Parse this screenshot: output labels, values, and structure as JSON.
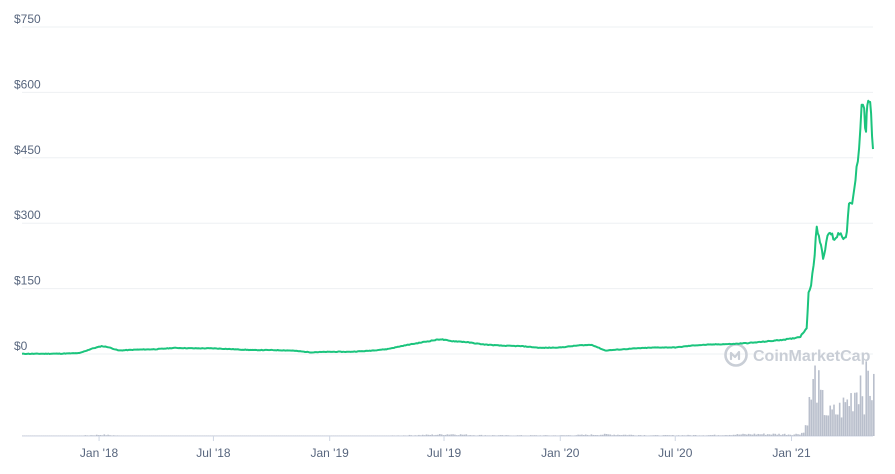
{
  "watermark": {
    "text": "CoinMarketCap"
  },
  "colors": {
    "line": "#1bc47d",
    "grid": "#eef0f3",
    "volume": "#b9bfcc",
    "axis_text": "#58667e",
    "watermark": "#c9ced6"
  },
  "chart_data": {
    "type": "line",
    "title": "",
    "xlabel": "",
    "ylabel": "",
    "ylim": [
      0,
      750
    ],
    "y_ticks": [
      "$750",
      "$600",
      "$450",
      "$300",
      "$150",
      "$0"
    ],
    "y_tick_values": [
      750,
      600,
      450,
      300,
      150,
      0
    ],
    "x_ticks": [
      "Jan '18",
      "Jul '18",
      "Jan '19",
      "Jul '19",
      "Jan '20",
      "Jul '20",
      "Jan '21"
    ],
    "x_tick_dates": [
      "2018-01-01",
      "2018-07-01",
      "2019-01-01",
      "2019-07-01",
      "2020-01-01",
      "2020-07-01",
      "2021-01-01"
    ],
    "xlim": [
      "2017-09-01",
      "2021-05-10"
    ],
    "grid": true,
    "legend": "none",
    "series": [
      {
        "values": [
          [
            "2017-09-01",
            0.5
          ],
          [
            "2017-10-01",
            0.5
          ],
          [
            "2017-11-01",
            0.8
          ],
          [
            "2017-12-01",
            2
          ],
          [
            "2017-12-20",
            12
          ],
          [
            "2018-01-05",
            18
          ],
          [
            "2018-01-15",
            16
          ],
          [
            "2018-02-01",
            8
          ],
          [
            "2018-02-15",
            9
          ],
          [
            "2018-03-01",
            10
          ],
          [
            "2018-04-01",
            11
          ],
          [
            "2018-05-01",
            14
          ],
          [
            "2018-06-01",
            13
          ],
          [
            "2018-07-01",
            13
          ],
          [
            "2018-08-01",
            11
          ],
          [
            "2018-09-01",
            9
          ],
          [
            "2018-10-01",
            9
          ],
          [
            "2018-11-01",
            8
          ],
          [
            "2018-12-01",
            4
          ],
          [
            "2019-01-01",
            5
          ],
          [
            "2019-02-01",
            5
          ],
          [
            "2019-03-01",
            7
          ],
          [
            "2019-04-01",
            11
          ],
          [
            "2019-05-01",
            20
          ],
          [
            "2019-06-01",
            28
          ],
          [
            "2019-06-25",
            34
          ],
          [
            "2019-07-10",
            30
          ],
          [
            "2019-08-01",
            28
          ],
          [
            "2019-09-01",
            22
          ],
          [
            "2019-10-01",
            19
          ],
          [
            "2019-11-01",
            18
          ],
          [
            "2019-12-01",
            14
          ],
          [
            "2020-01-01",
            15
          ],
          [
            "2020-02-01",
            20
          ],
          [
            "2020-02-20",
            21
          ],
          [
            "2020-03-12",
            8
          ],
          [
            "2020-04-01",
            10
          ],
          [
            "2020-05-01",
            13
          ],
          [
            "2020-06-01",
            15
          ],
          [
            "2020-07-01",
            15
          ],
          [
            "2020-08-01",
            20
          ],
          [
            "2020-09-01",
            22
          ],
          [
            "2020-10-01",
            23
          ],
          [
            "2020-11-01",
            26
          ],
          [
            "2020-12-01",
            30
          ],
          [
            "2021-01-01",
            35
          ],
          [
            "2021-01-15",
            40
          ],
          [
            "2021-01-25",
            60
          ],
          [
            "2021-01-28",
            140
          ],
          [
            "2021-02-01",
            160
          ],
          [
            "2021-02-05",
            200
          ],
          [
            "2021-02-10",
            295
          ],
          [
            "2021-02-15",
            260
          ],
          [
            "2021-02-20",
            225
          ],
          [
            "2021-02-25",
            250
          ],
          [
            "2021-03-01",
            280
          ],
          [
            "2021-03-10",
            265
          ],
          [
            "2021-03-20",
            280
          ],
          [
            "2021-03-28",
            260
          ],
          [
            "2021-04-02",
            340
          ],
          [
            "2021-04-07",
            340
          ],
          [
            "2021-04-14",
            420
          ],
          [
            "2021-04-18",
            480
          ],
          [
            "2021-04-22",
            580
          ],
          [
            "2021-04-26",
            560
          ],
          [
            "2021-04-29",
            500
          ],
          [
            "2021-05-01",
            580
          ],
          [
            "2021-05-04",
            585
          ],
          [
            "2021-05-07",
            540
          ],
          [
            "2021-05-10",
            470
          ]
        ]
      }
    ],
    "volume": {
      "values": [
        [
          "2017-09-01",
          0.1
        ],
        [
          "2017-12-01",
          0.6
        ],
        [
          "2018-01-05",
          2
        ],
        [
          "2018-02-01",
          0.6
        ],
        [
          "2018-04-01",
          0.3
        ],
        [
          "2018-07-01",
          0.4
        ],
        [
          "2018-10-01",
          0.2
        ],
        [
          "2019-01-01",
          0.3
        ],
        [
          "2019-04-01",
          0.5
        ],
        [
          "2019-06-15",
          2
        ],
        [
          "2019-07-10",
          3
        ],
        [
          "2019-08-15",
          1.5
        ],
        [
          "2019-10-01",
          1
        ],
        [
          "2020-01-01",
          1
        ],
        [
          "2020-02-20",
          2
        ],
        [
          "2020-03-12",
          2.5
        ],
        [
          "2020-06-01",
          1
        ],
        [
          "2020-09-01",
          1.5
        ],
        [
          "2020-11-01",
          3
        ],
        [
          "2020-12-15",
          3
        ],
        [
          "2021-01-05",
          2.5
        ],
        [
          "2021-01-20",
          6
        ],
        [
          "2021-01-29",
          55
        ],
        [
          "2021-02-08",
          100
        ],
        [
          "2021-02-14",
          60
        ],
        [
          "2021-02-22",
          45
        ],
        [
          "2021-03-01",
          35
        ],
        [
          "2021-03-15",
          40
        ],
        [
          "2021-04-03",
          60
        ],
        [
          "2021-04-15",
          85
        ],
        [
          "2021-04-20",
          100
        ],
        [
          "2021-04-25",
          70
        ],
        [
          "2021-05-01",
          95
        ],
        [
          "2021-05-05",
          85
        ],
        [
          "2021-05-10",
          70
        ]
      ]
    }
  }
}
